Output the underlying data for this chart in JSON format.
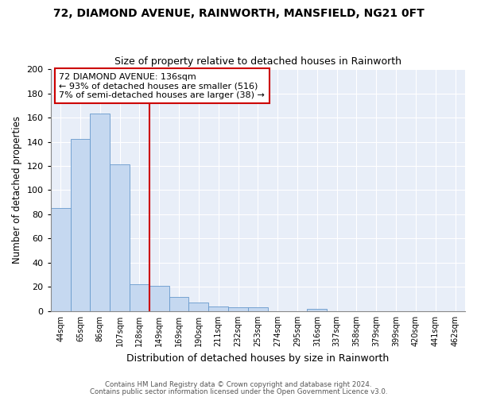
{
  "title1": "72, DIAMOND AVENUE, RAINWORTH, MANSFIELD, NG21 0FT",
  "title2": "Size of property relative to detached houses in Rainworth",
  "xlabel": "Distribution of detached houses by size in Rainworth",
  "ylabel": "Number of detached properties",
  "bar_labels": [
    "44sqm",
    "65sqm",
    "86sqm",
    "107sqm",
    "128sqm",
    "149sqm",
    "169sqm",
    "190sqm",
    "211sqm",
    "232sqm",
    "253sqm",
    "274sqm",
    "295sqm",
    "316sqm",
    "337sqm",
    "358sqm",
    "379sqm",
    "399sqm",
    "420sqm",
    "441sqm",
    "462sqm"
  ],
  "bar_values": [
    85,
    142,
    163,
    121,
    22,
    21,
    12,
    7,
    4,
    3,
    3,
    0,
    0,
    2,
    0,
    0,
    0,
    0,
    0,
    0,
    0
  ],
  "bar_color": "#c5d8f0",
  "bar_edge_color": "#6699cc",
  "bg_color": "#e8eef8",
  "grid_color": "#ffffff",
  "vline_x": 4.5,
  "vline_color": "#cc0000",
  "annotation_text": "72 DIAMOND AVENUE: 136sqm\n← 93% of detached houses are smaller (516)\n7% of semi-detached houses are larger (38) →",
  "annotation_box_color": "#ffffff",
  "annotation_box_edge": "#cc0000",
  "footer1": "Contains HM Land Registry data © Crown copyright and database right 2024.",
  "footer2": "Contains public sector information licensed under the Open Government Licence v3.0.",
  "ylim": [
    0,
    200
  ],
  "yticks": [
    0,
    20,
    40,
    60,
    80,
    100,
    120,
    140,
    160,
    180,
    200
  ]
}
